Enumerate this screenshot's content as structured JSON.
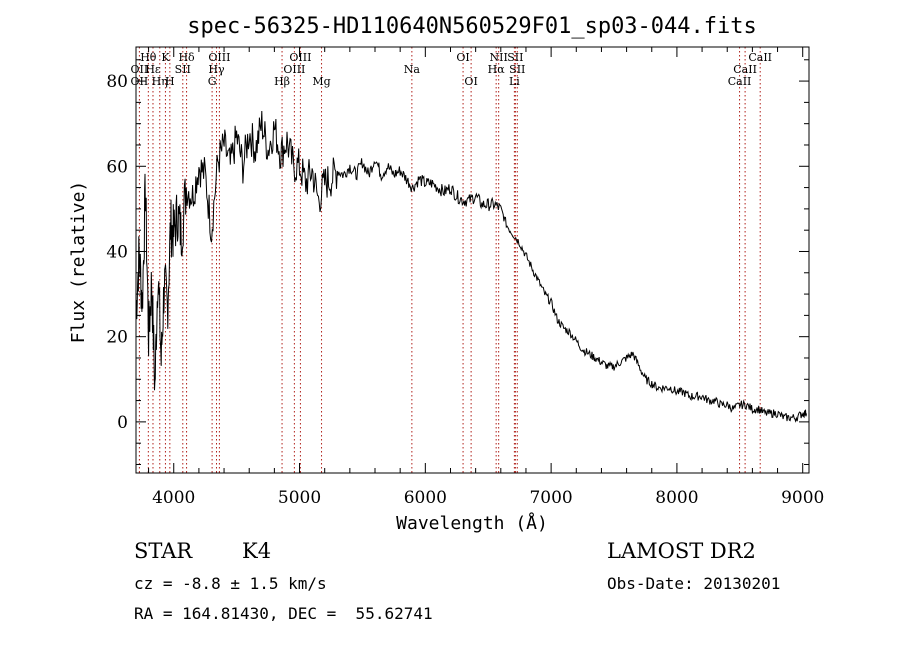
{
  "chart_data": {
    "type": "line",
    "title": "spec-56325-HD110640N560529F01_sp03-044.fits",
    "xlabel": "Wavelength (Å)",
    "ylabel": "Flux (relative)",
    "xlim": [
      3700,
      9050
    ],
    "ylim": [
      -12,
      88
    ],
    "x_ticks": [
      4000,
      5000,
      6000,
      7000,
      8000,
      9000
    ],
    "y_ticks": [
      0,
      20,
      40,
      60,
      80
    ],
    "grid": false,
    "series": [
      {
        "color": "#000000",
        "x": [
          3700,
          3725,
          3750,
          3775,
          3800,
          3825,
          3850,
          3875,
          3900,
          3925,
          3950,
          3975,
          4000,
          4030,
          4060,
          4100,
          4150,
          4200,
          4250,
          4300,
          4350,
          4400,
          4450,
          4500,
          4550,
          4600,
          4650,
          4700,
          4750,
          4800,
          4850,
          4900,
          4950,
          5000,
          5050,
          5100,
          5150,
          5200,
          5250,
          5300,
          5350,
          5400,
          5450,
          5500,
          5550,
          5600,
          5650,
          5700,
          5750,
          5800,
          5850,
          5900,
          5950,
          6000,
          6050,
          6100,
          6150,
          6200,
          6250,
          6300,
          6350,
          6400,
          6450,
          6500,
          6550,
          6600,
          6650,
          6700,
          6750,
          6800,
          6850,
          6900,
          6950,
          7000,
          7050,
          7100,
          7150,
          7200,
          7250,
          7300,
          7350,
          7400,
          7450,
          7500,
          7550,
          7600,
          7650,
          7700,
          7750,
          7800,
          7850,
          7900,
          7950,
          8000,
          8050,
          8100,
          8150,
          8200,
          8250,
          8300,
          8350,
          8400,
          8450,
          8500,
          8550,
          8600,
          8650,
          8700,
          8750,
          8800,
          8850,
          8900,
          8950,
          9000,
          9030
        ],
        "y": [
          26,
          40,
          28,
          55,
          20,
          33,
          8,
          36,
          14,
          33,
          26,
          46,
          44,
          49,
          44,
          55,
          53,
          60,
          58,
          45,
          61,
          65,
          60,
          67,
          60,
          68,
          64,
          70,
          64,
          69,
          63,
          66,
          60,
          60,
          56,
          59,
          52,
          56,
          57,
          59,
          58,
          60,
          58,
          61,
          58,
          62,
          58,
          60,
          58,
          59,
          57,
          55,
          57,
          56,
          56,
          55,
          54,
          55,
          53,
          52,
          52,
          53,
          51,
          51,
          51,
          50,
          46,
          44,
          42,
          39,
          36,
          33,
          30,
          28,
          24,
          22,
          21,
          19,
          17,
          16,
          15,
          14,
          13,
          13,
          14,
          15,
          16,
          13,
          10,
          9,
          8,
          8,
          8,
          7,
          7,
          6,
          6,
          6,
          5,
          5,
          4,
          4,
          3,
          4,
          4,
          3,
          3,
          2,
          2,
          2,
          1,
          1,
          1,
          2,
          2
        ]
      }
    ],
    "lines": [
      {
        "label": "Hθ",
        "x": 3798,
        "row": 0
      },
      {
        "label": "OII",
        "x": 3727,
        "row": 1
      },
      {
        "label": "OII",
        "x": 3727,
        "row": 2
      },
      {
        "label": "Hε",
        "x": 3835,
        "row": 1
      },
      {
        "label": "Hη",
        "x": 3889,
        "row": 2
      },
      {
        "label": "K",
        "x": 3934,
        "row": 0
      },
      {
        "label": "H",
        "x": 3969,
        "row": 2
      },
      {
        "label": "Hδ",
        "x": 4102,
        "row": 0
      },
      {
        "label": "SII",
        "x": 4072,
        "row": 1
      },
      {
        "label": "OIII",
        "x": 4363,
        "row": 0
      },
      {
        "label": "Hγ",
        "x": 4340,
        "row": 1
      },
      {
        "label": "G",
        "x": 4305,
        "row": 2
      },
      {
        "label": "OIII",
        "x": 5007,
        "row": 0
      },
      {
        "label": "OIII",
        "x": 4959,
        "row": 1
      },
      {
        "label": "Hβ",
        "x": 4861,
        "row": 2
      },
      {
        "label": "Mg",
        "x": 5175,
        "row": 2
      },
      {
        "label": "Na",
        "x": 5893,
        "row": 1
      },
      {
        "label": "OI",
        "x": 6300,
        "row": 0
      },
      {
        "label": "OI",
        "x": 6364,
        "row": 2
      },
      {
        "label": "NII",
        "x": 6583,
        "row": 0
      },
      {
        "label": "SII",
        "x": 6716,
        "row": 0
      },
      {
        "label": "Hα",
        "x": 6563,
        "row": 1
      },
      {
        "label": "SII",
        "x": 6731,
        "row": 1
      },
      {
        "label": "Li",
        "x": 6708,
        "row": 2
      },
      {
        "label": "CaII",
        "x": 8662,
        "row": 0
      },
      {
        "label": "CaII",
        "x": 8542,
        "row": 1
      },
      {
        "label": "CaII",
        "x": 8498,
        "row": 2
      }
    ]
  },
  "info": {
    "class_label": "STAR",
    "subclass": "K4",
    "survey": "LAMOST DR2",
    "cz": "cz = -8.8 ± 1.5 km/s",
    "obs_date": "Obs-Date: 20130201",
    "coords": "RA = 164.81430, DEC =  55.62741"
  },
  "colors": {
    "line_marker": "#b0201a",
    "spectrum": "#000000"
  }
}
